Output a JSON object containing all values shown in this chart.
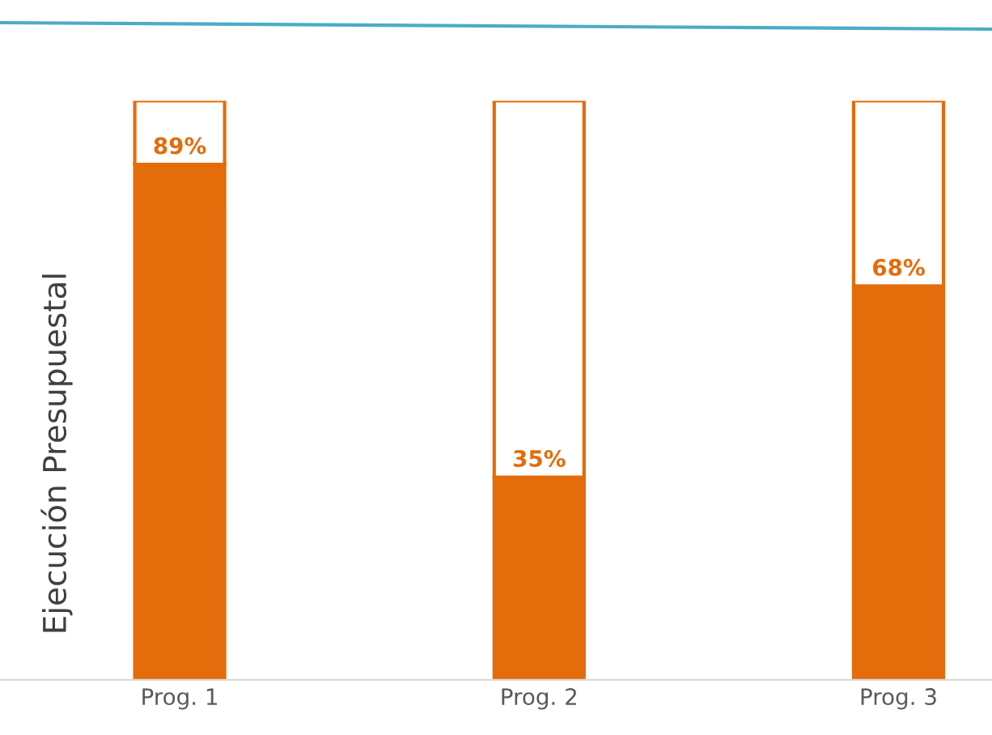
{
  "chart_data": {
    "type": "bar",
    "stacked": true,
    "ylabel": "Ejecución Presupuestal",
    "categories": [
      "Prog. 1",
      "Prog. 2",
      "Prog. 3"
    ],
    "series": [
      {
        "color": "#e46c0a",
        "values": [
          89,
          35,
          68
        ],
        "value_labels": [
          "89%",
          "35%",
          "68%"
        ]
      },
      {
        "color": "#ffffff",
        "values": [
          11,
          65,
          32
        ]
      }
    ],
    "ylim": [
      0,
      100
    ],
    "tick_labels": "x",
    "grid": false,
    "legend": false
  }
}
